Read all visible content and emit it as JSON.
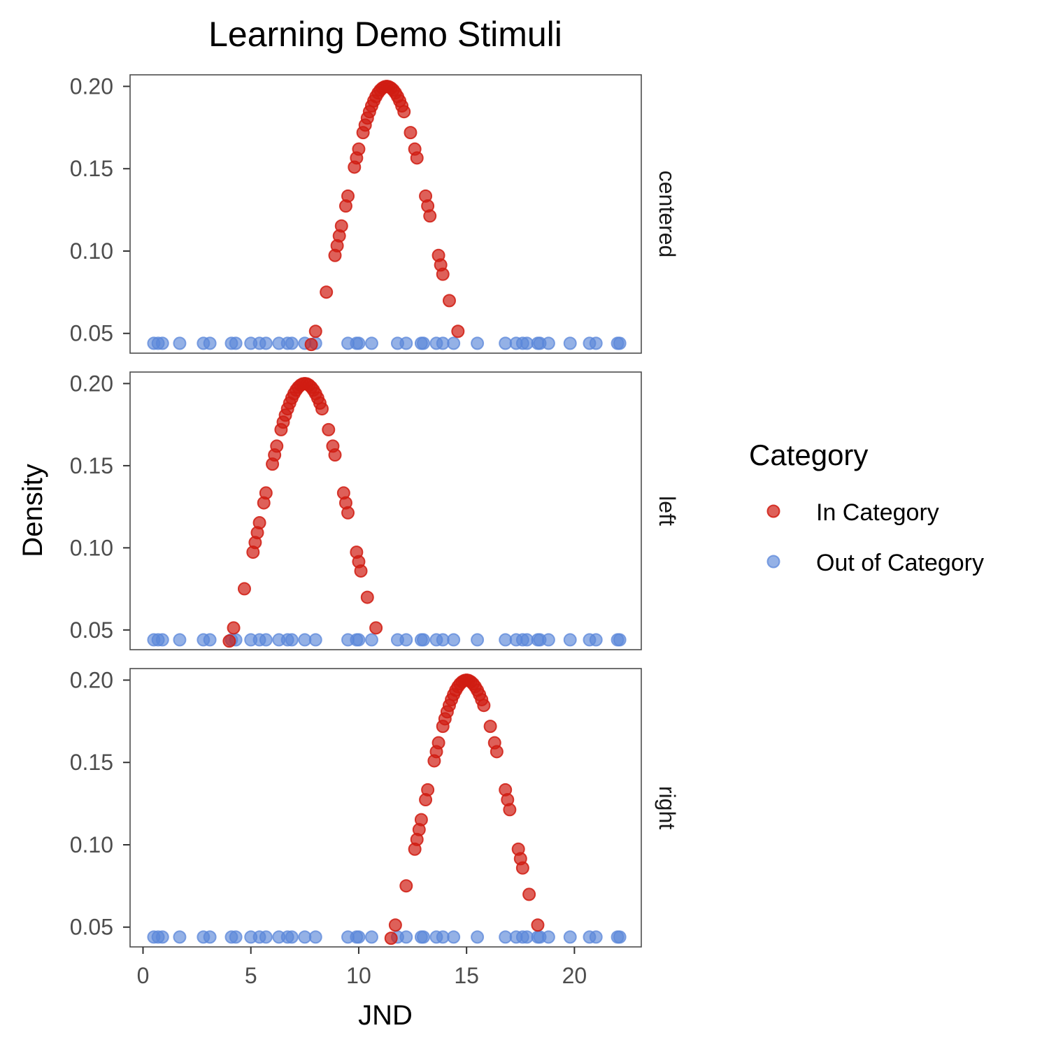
{
  "chart_data": {
    "type": "scatter",
    "title": "Learning Demo Stimuli",
    "xlabel": "JND",
    "ylabel": "Density",
    "xlim": [
      -0.6,
      23.1
    ],
    "ylim": [
      0.038,
      0.207
    ],
    "x_ticks": [
      0,
      5,
      10,
      15,
      20
    ],
    "y_ticks": [
      0.05,
      0.1,
      0.15,
      0.2
    ],
    "y_tick_labels": [
      "0.05",
      "0.10",
      "0.15",
      "0.20"
    ],
    "grid": false,
    "legend": {
      "title": "Category",
      "position": "right",
      "entries": [
        {
          "label": "In Category",
          "color": "#d01c12"
        },
        {
          "label": "Out of Category",
          "color": "#5b87d9"
        }
      ]
    },
    "out_of_category_y": 0.044,
    "out_of_category_x": [
      0.5,
      0.7,
      0.9,
      1.7,
      2.8,
      3.1,
      4.1,
      4.3,
      5.0,
      5.4,
      5.7,
      6.3,
      6.7,
      6.9,
      7.5,
      8.0,
      9.5,
      9.9,
      10.0,
      10.6,
      11.8,
      12.2,
      12.9,
      13.0,
      13.6,
      13.9,
      14.4,
      15.5,
      16.8,
      17.3,
      17.6,
      17.8,
      18.3,
      18.4,
      18.8,
      19.8,
      20.7,
      21.0,
      22.0,
      22.1
    ],
    "in_category_offsets": [
      -3.5,
      -3.3,
      -2.8,
      -2.4,
      -2.3,
      -2.2,
      -2.1,
      -1.9,
      -1.8,
      -1.5,
      -1.4,
      -1.3,
      -1.1,
      -1.0,
      -0.9,
      -0.8,
      -0.7,
      -0.6,
      -0.5,
      -0.4,
      -0.3,
      -0.2,
      -0.1,
      0.0,
      0.1,
      0.2,
      0.3,
      0.4,
      0.5,
      0.6,
      0.7,
      0.8,
      1.1,
      1.3,
      1.4,
      1.8,
      1.9,
      2.0,
      2.4,
      2.5,
      2.6,
      2.9,
      3.3
    ],
    "facets": [
      {
        "label": "centered",
        "center": 11.3
      },
      {
        "label": "left",
        "center": 7.5
      },
      {
        "label": "right",
        "center": 15.0
      }
    ]
  }
}
